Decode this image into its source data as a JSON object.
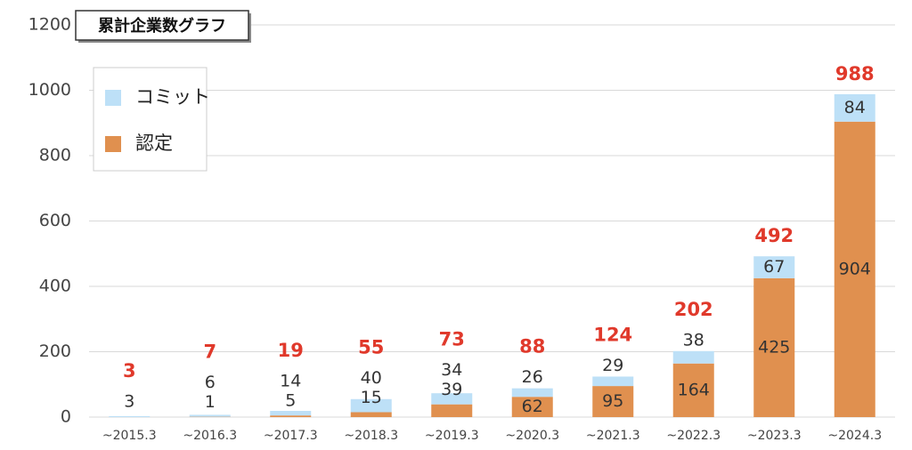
{
  "chart_data": {
    "type": "bar",
    "stacked": true,
    "title": "累計企業数グラフ",
    "categories": [
      "~2015.3",
      "~2016.3",
      "~2017.3",
      "~2018.3",
      "~2019.3",
      "~2020.3",
      "~2021.3",
      "~2022.3",
      "~2023.3",
      "~2024.3"
    ],
    "series": [
      {
        "name": "認定",
        "color": "#e0904f",
        "values": [
          null,
          1,
          5,
          15,
          39,
          62,
          95,
          164,
          425,
          904
        ]
      },
      {
        "name": "コミット",
        "color": "#bde0f7",
        "values": [
          3,
          6,
          14,
          40,
          34,
          26,
          29,
          38,
          67,
          84
        ]
      }
    ],
    "totals": [
      3,
      7,
      19,
      55,
      73,
      88,
      124,
      202,
      492,
      988
    ],
    "totals_color": "#e0392b",
    "ylim": [
      0,
      1200
    ],
    "yticks": [
      0,
      200,
      400,
      600,
      800,
      1000,
      1200
    ],
    "grid": true
  }
}
